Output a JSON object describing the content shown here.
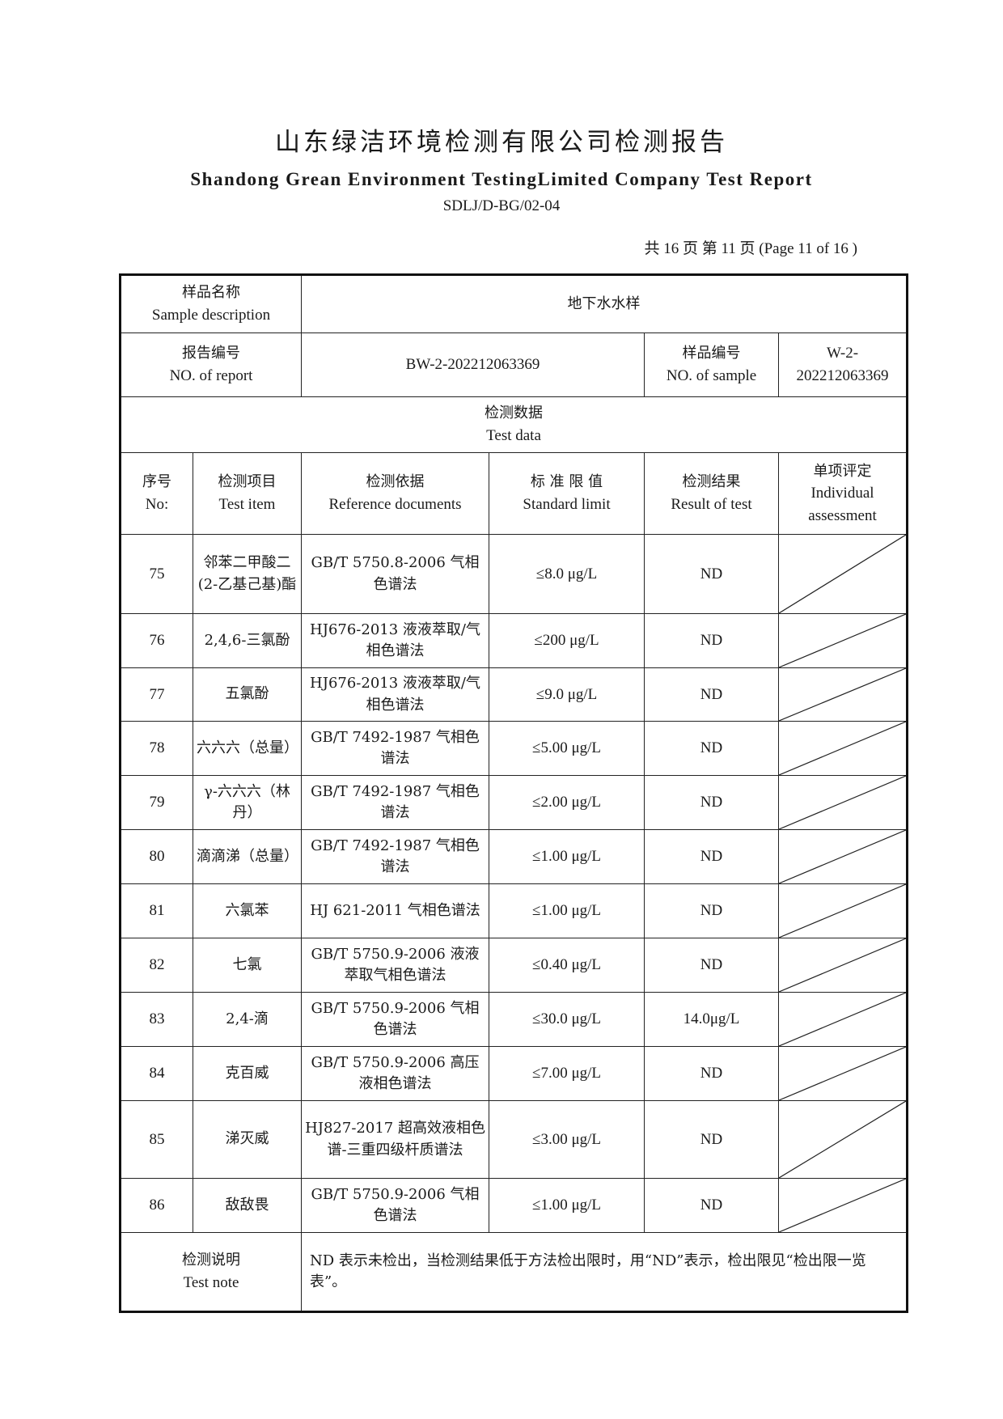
{
  "header": {
    "title_cn": "山东绿洁环境检测有限公司检测报告",
    "title_en": "Shandong Grean Environment TestingLimited Company Test Report",
    "form_code": "SDLJ/D-BG/02-04",
    "page_info": "共 16 页  第 11 页  (Page 11 of 16 )"
  },
  "info": {
    "sample_desc_cn": "样品名称",
    "sample_desc_en": "Sample description",
    "sample_desc_value": "地下水水样",
    "report_no_cn": "报告编号",
    "report_no_en": "NO. of report",
    "report_no_value": "BW-2-202212063369",
    "sample_no_cn": "样品编号",
    "sample_no_en": "NO. of sample",
    "sample_no_value": "W-2-202212063369",
    "test_data_cn": "检测数据",
    "test_data_en": "Test data"
  },
  "columns": [
    {
      "cn": "序号",
      "en": "No:"
    },
    {
      "cn": "检测项目",
      "en": "Test item"
    },
    {
      "cn": "检测依据",
      "en": "Reference documents"
    },
    {
      "cn": "标 准 限 值",
      "en": "Standard limit"
    },
    {
      "cn": "检测结果",
      "en": "Result of test"
    },
    {
      "cn": "单项评定",
      "en": "Individual assessment"
    }
  ],
  "rows": [
    {
      "no": "75",
      "item": "邻苯二甲酸二(2-乙基己基)酯",
      "ref": "GB/T 5750.8-2006 气相色谱法",
      "limit": "≤8.0 μg/L",
      "result": "ND"
    },
    {
      "no": "76",
      "item": "2,4,6-三氯酚",
      "ref": "HJ676-2013 液液萃取/气相色谱法",
      "limit": "≤200 μg/L",
      "result": "ND"
    },
    {
      "no": "77",
      "item": "五氯酚",
      "ref": "HJ676-2013 液液萃取/气相色谱法",
      "limit": "≤9.0 μg/L",
      "result": "ND"
    },
    {
      "no": "78",
      "item": "六六六（总量）",
      "ref": "GB/T 7492-1987 气相色谱法",
      "limit": "≤5.00 μg/L",
      "result": "ND"
    },
    {
      "no": "79",
      "item": "γ-六六六（林丹）",
      "ref": "GB/T 7492-1987 气相色谱法",
      "limit": "≤2.00 μg/L",
      "result": "ND"
    },
    {
      "no": "80",
      "item": "滴滴涕（总量）",
      "ref": "GB/T 7492-1987 气相色谱法",
      "limit": "≤1.00 μg/L",
      "result": "ND"
    },
    {
      "no": "81",
      "item": "六氯苯",
      "ref": "HJ 621-2011 气相色谱法",
      "limit": "≤1.00 μg/L",
      "result": "ND"
    },
    {
      "no": "82",
      "item": "七氯",
      "ref": "GB/T 5750.9-2006 液液萃取气相色谱法",
      "limit": "≤0.40 μg/L",
      "result": "ND"
    },
    {
      "no": "83",
      "item": "2,4-滴",
      "ref": "GB/T 5750.9-2006 气相色谱法",
      "limit": "≤30.0 μg/L",
      "result": "14.0μg/L"
    },
    {
      "no": "84",
      "item": "克百威",
      "ref": "GB/T 5750.9-2006 高压液相色谱法",
      "limit": "≤7.00 μg/L",
      "result": "ND"
    },
    {
      "no": "85",
      "item": "涕灭威",
      "ref": "HJ827-2017 超高效液相色谱-三重四级杆质谱法",
      "limit": "≤3.00 μg/L",
      "result": "ND"
    },
    {
      "no": "86",
      "item": "敌敌畏",
      "ref": "GB/T 5750.9-2006 气相色谱法",
      "limit": "≤1.00 μg/L",
      "result": "ND"
    }
  ],
  "note": {
    "label_cn": "检测说明",
    "label_en": "Test note",
    "text": "ND 表示未检出，当检测结果低于方法检出限时，用“ND”表示，检出限见“检出限一览表”。"
  }
}
